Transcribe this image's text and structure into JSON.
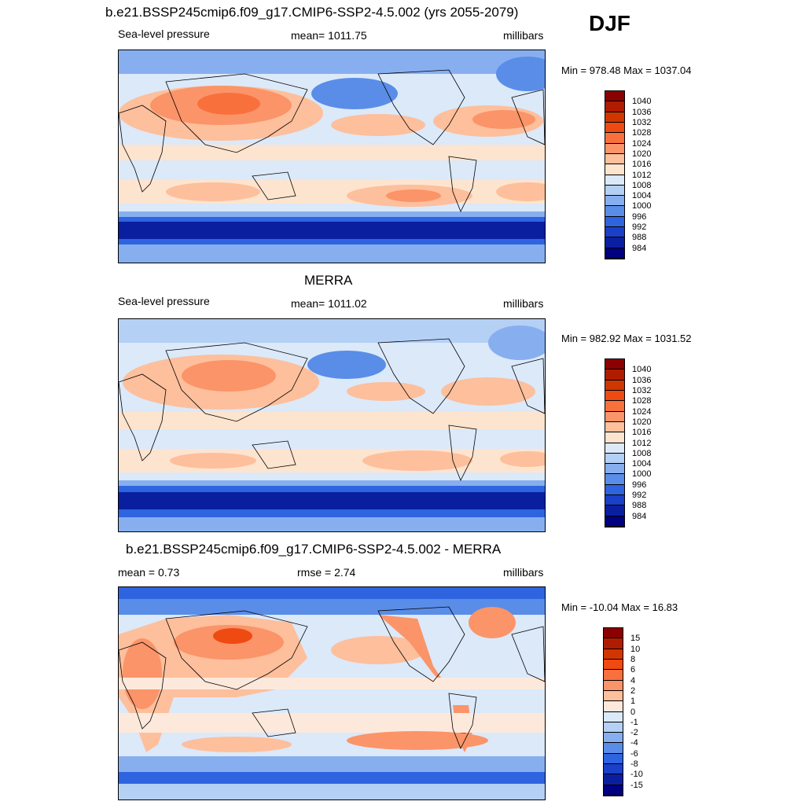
{
  "season": "DJF",
  "panels": [
    {
      "title": "b.e21.BSSP245cmip6.f09_g17.CMIP6-SSP2-4.5.002 (yrs 2055-2079)",
      "left": "Sea-level pressure",
      "center": "mean= 1011.75",
      "right": "millibars",
      "minmax": "Min = 978.48 Max = 1037.04"
    },
    {
      "title": "MERRA",
      "left": "Sea-level pressure",
      "center": "mean= 1011.02",
      "right": "millibars",
      "minmax": "Min = 982.92 Max = 1031.52"
    },
    {
      "title": "b.e21.BSSP245cmip6.f09_g17.CMIP6-SSP2-4.5.002 - MERRA",
      "left": "mean =   0.73",
      "center": "rmse =   2.74",
      "right": "millibars",
      "minmax": "Min = -10.04 Max =  16.83"
    }
  ],
  "colorbars": {
    "pressure": {
      "labels": [
        "1040",
        "1036",
        "1032",
        "1028",
        "1024",
        "1020",
        "1016",
        "1012",
        "1008",
        "1004",
        "1000",
        "996",
        "992",
        "988",
        "984"
      ],
      "colors": [
        "#8b0000",
        "#b01c00",
        "#d13600",
        "#ee4a12",
        "#f8703c",
        "#fb9468",
        "#fdbf9c",
        "#fde4cf",
        "#dbe9f9",
        "#b5d0f5",
        "#87aff0",
        "#5a8de8",
        "#2f64e0",
        "#1a3fc8",
        "#0a1fa0",
        "#000080"
      ]
    },
    "difference": {
      "labels": [
        "15",
        "10",
        "8",
        "6",
        "4",
        "2",
        "1",
        "0",
        "-1",
        "-2",
        "-4",
        "-6",
        "-8",
        "-10",
        "-15"
      ],
      "colors": [
        "#8b0000",
        "#b01c00",
        "#d13600",
        "#ee4a12",
        "#f8703c",
        "#fb9468",
        "#fdbf9c",
        "#fde9dc",
        "#dbe9f9",
        "#b5d0f5",
        "#87aff0",
        "#5a8de8",
        "#2f64e0",
        "#1a3fc8",
        "#0a1fa0",
        "#000080"
      ]
    }
  }
}
